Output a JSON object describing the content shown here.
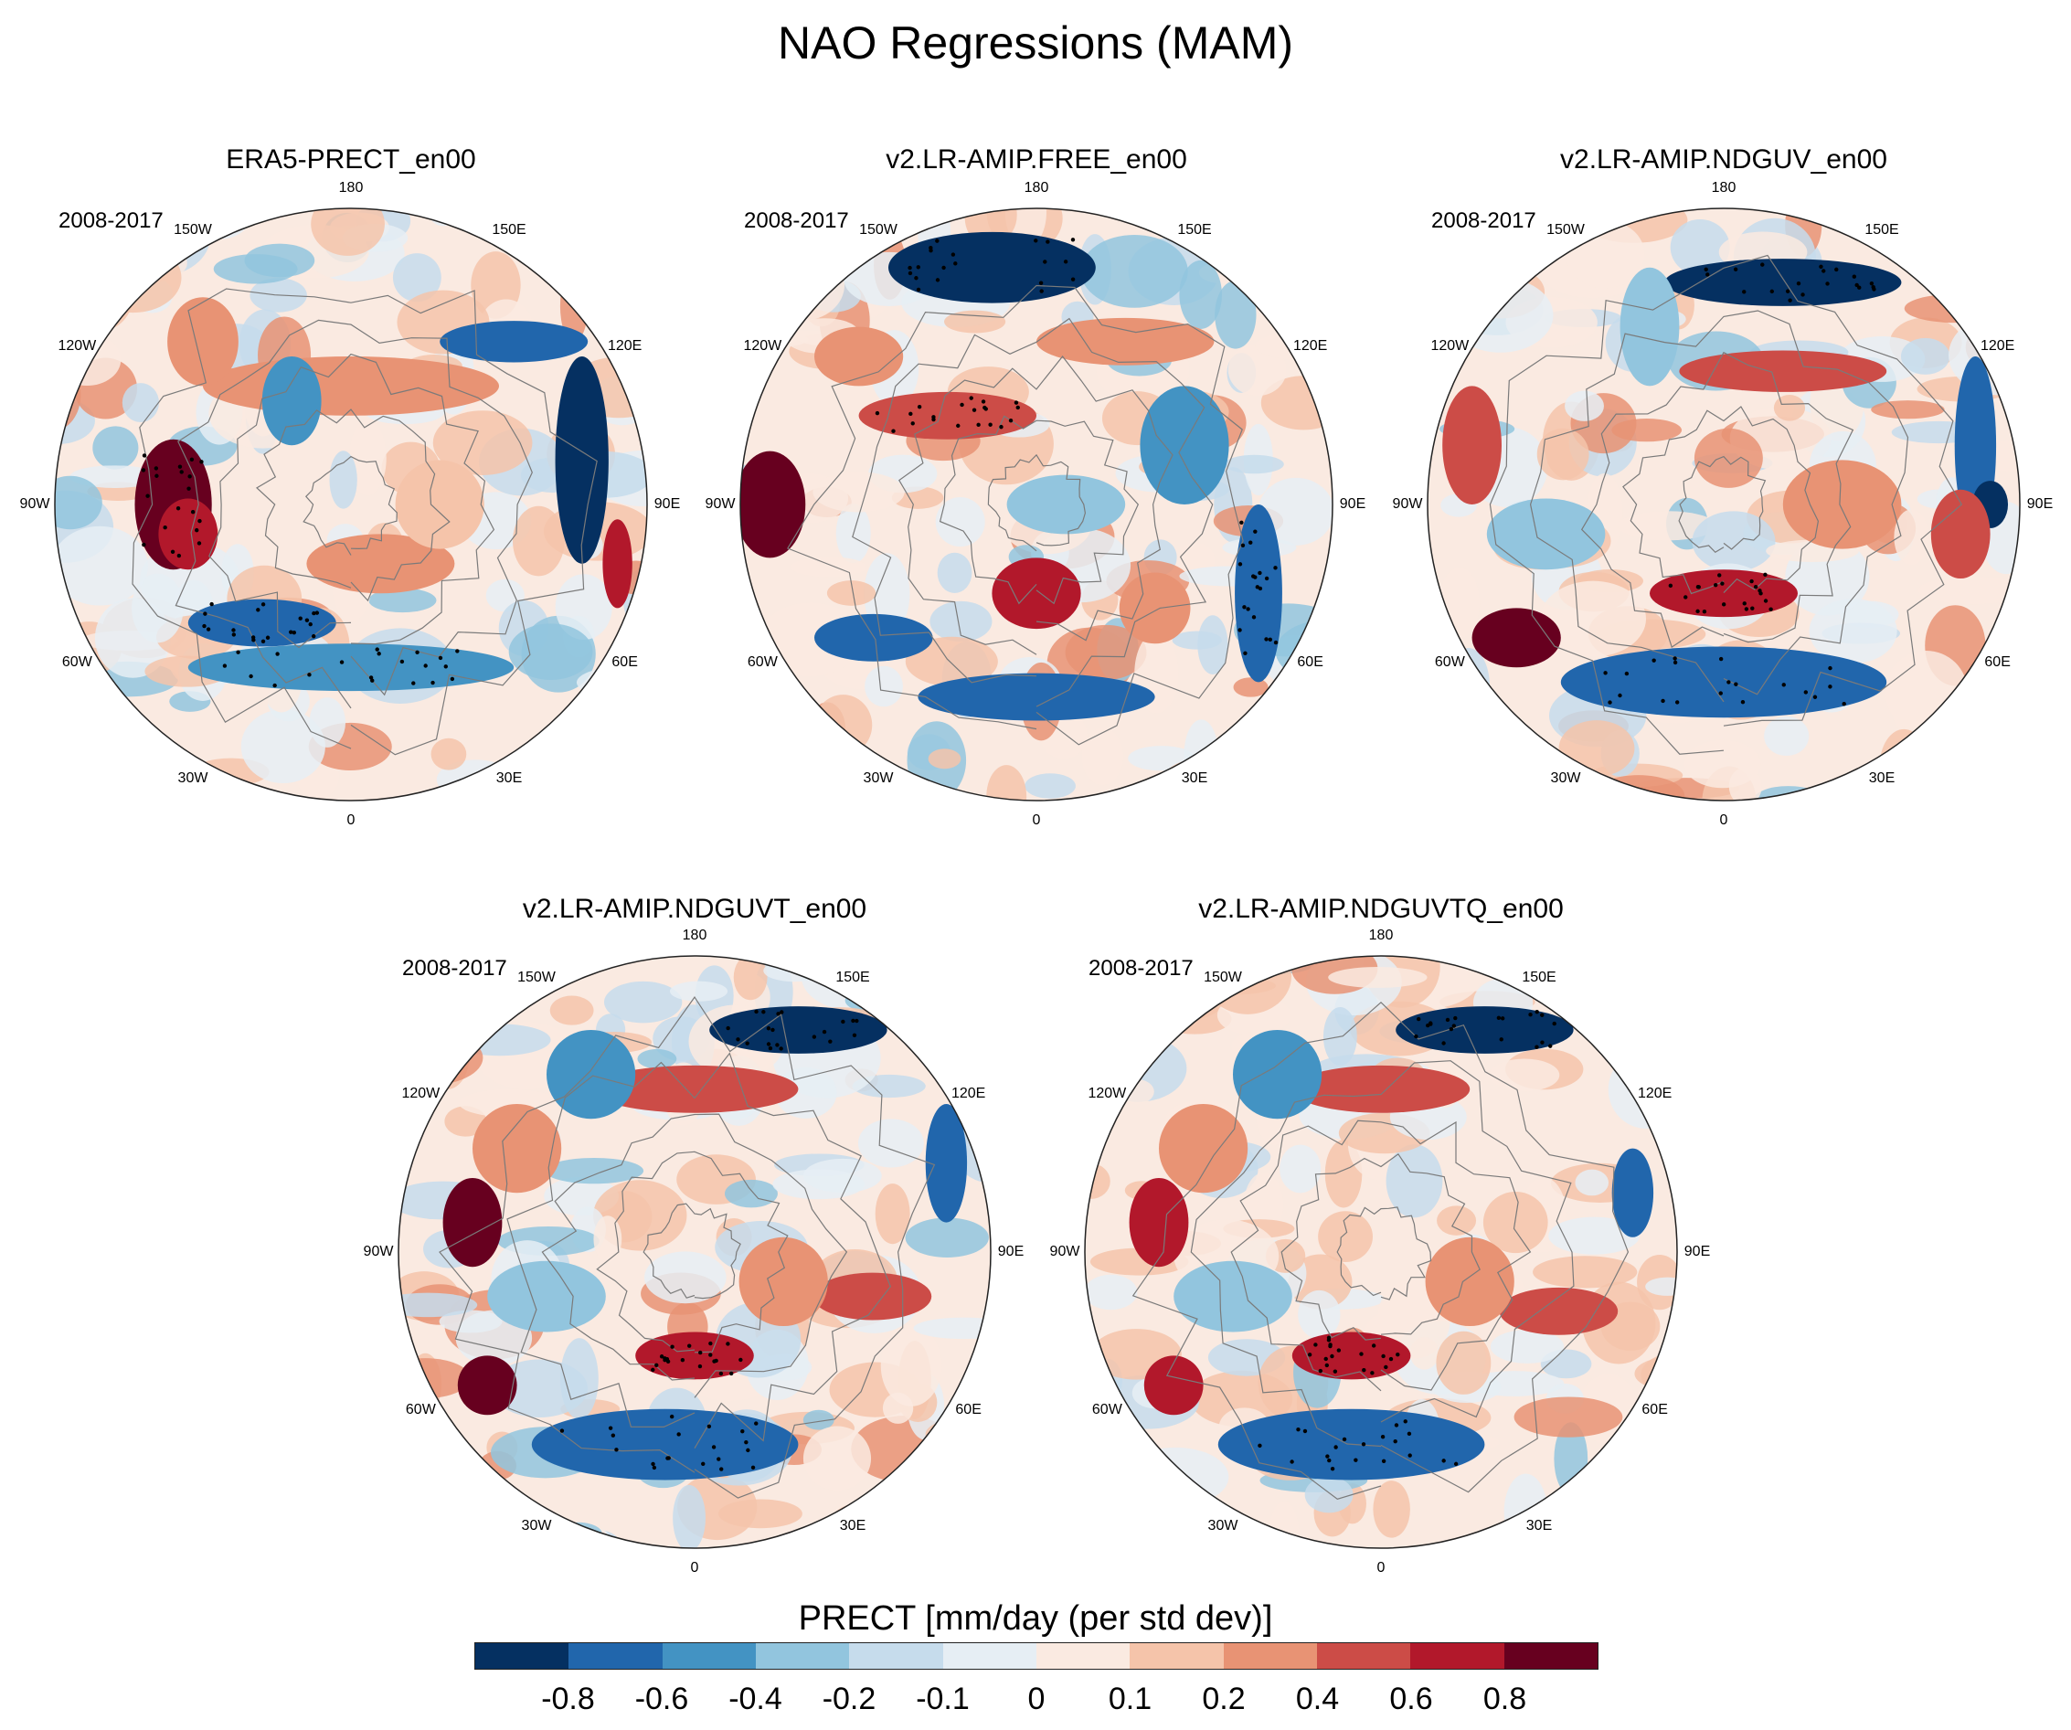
{
  "title": "NAO Regressions (MAM)",
  "panels": [
    {
      "title": "ERA5-PRECT_en00",
      "period": "2008-2017"
    },
    {
      "title": "v2.LR-AMIP.FREE_en00",
      "period": "2008-2017"
    },
    {
      "title": "v2.LR-AMIP.NDGUV_en00",
      "period": "2008-2017"
    },
    {
      "title": "v2.LR-AMIP.NDGUVT_en00",
      "period": "2008-2017"
    },
    {
      "title": "v2.LR-AMIP.NDGUVTQ_en00",
      "period": "2008-2017"
    }
  ],
  "longitude_labels": [
    "0",
    "30E",
    "60E",
    "90E",
    "120E",
    "150E",
    "180",
    "150W",
    "120W",
    "90W",
    "60W",
    "30W"
  ],
  "colorbar": {
    "title": "PRECT [mm/day (per std dev)]",
    "ticks": [
      "-0.8",
      "-0.6",
      "-0.4",
      "-0.2",
      "-0.1",
      "0",
      "0.1",
      "0.2",
      "0.4",
      "0.6",
      "0.8"
    ],
    "colors": [
      "#053061",
      "#2166ac",
      "#4393c3",
      "#92c5de",
      "#c6dcec",
      "#e6eef4",
      "#faeae1",
      "#f5c4aa",
      "#e89374",
      "#cc4c47",
      "#b2182b",
      "#67001f"
    ]
  }
}
